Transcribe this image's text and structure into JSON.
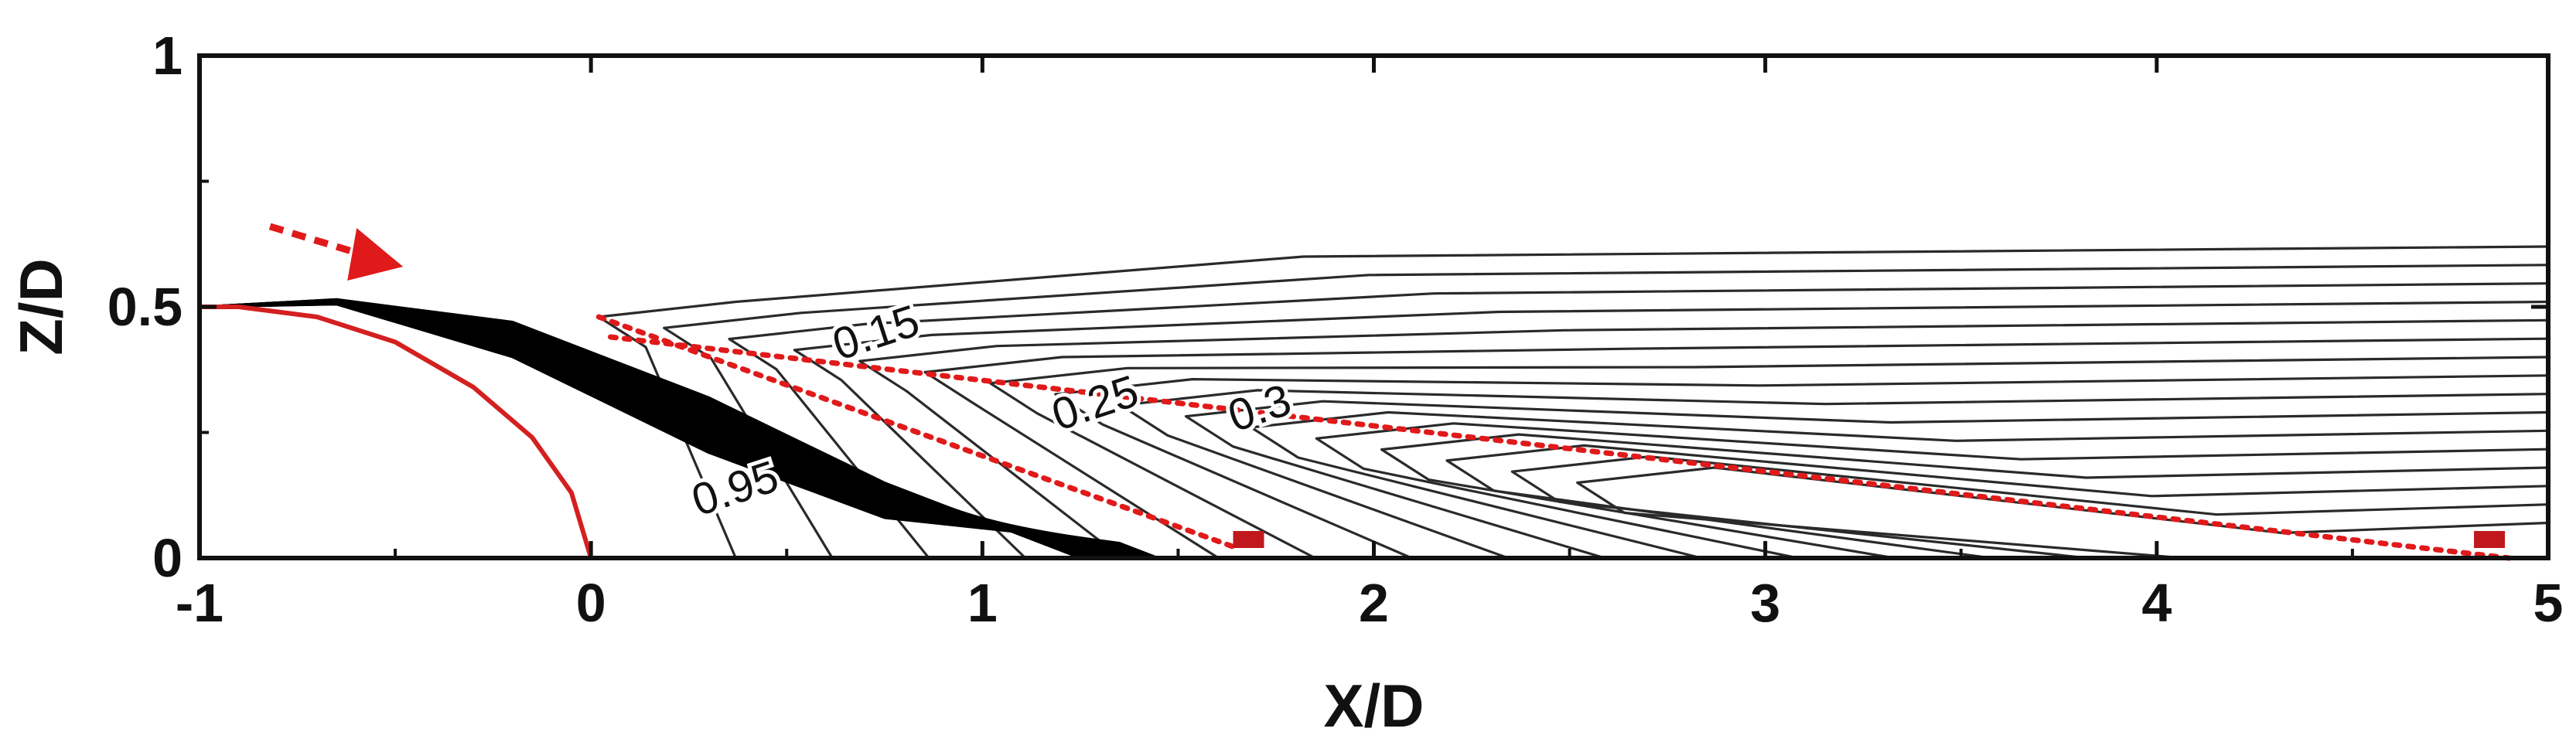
{
  "chart_data": {
    "type": "line",
    "xlabel": "X/D",
    "ylabel": "Z/D",
    "xlim": [
      -1,
      5
    ],
    "ylim": [
      0,
      1
    ],
    "xticks": [
      "-1",
      "0",
      "1",
      "2",
      "3",
      "4",
      "5"
    ],
    "yticks": [
      "0",
      "0.5",
      "1"
    ],
    "grid": false,
    "contour_labels": [
      {
        "text": "0.15",
        "x": 0.74,
        "y": 0.42
      },
      {
        "text": "0.25",
        "x": 1.3,
        "y": 0.28
      },
      {
        "text": "0.3",
        "x": 1.72,
        "y": 0.27
      },
      {
        "text": "0.95",
        "x": 0.38,
        "y": 0.11
      }
    ],
    "body_outline": {
      "color": "#d42020",
      "points": [
        [
          -1,
          0.5
        ],
        [
          -0.9,
          0.5
        ],
        [
          -0.7,
          0.48
        ],
        [
          -0.5,
          0.43
        ],
        [
          -0.3,
          0.34
        ],
        [
          -0.15,
          0.24
        ],
        [
          -0.05,
          0.13
        ],
        [
          0,
          0
        ]
      ]
    },
    "dotted_lines": [
      {
        "color": "#e01a1a",
        "points": [
          [
            0.02,
            0.48
          ],
          [
            1.65,
            0.02
          ]
        ]
      },
      {
        "color": "#e01a1a",
        "points": [
          [
            0.05,
            0.44
          ],
          [
            4.9,
            0.0
          ]
        ]
      }
    ],
    "markers": [
      {
        "color": "#c0181c",
        "x": 1.68,
        "y": 0.02
      },
      {
        "color": "#c0181c",
        "x": 4.85,
        "y": 0.02
      }
    ],
    "arrow": {
      "color": "#e01a1a",
      "from": [
        -0.82,
        0.66
      ],
      "to": [
        -0.48,
        0.58
      ]
    },
    "contour_color": "#2a2a2a"
  }
}
